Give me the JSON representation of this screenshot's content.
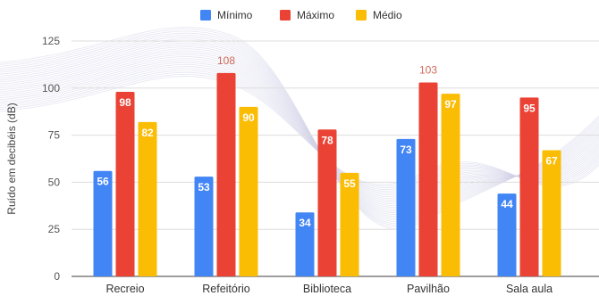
{
  "chart_data": {
    "type": "bar",
    "ylabel": "Ruído em decibéis (dB)",
    "ylim": [
      0,
      125
    ],
    "yticks": [
      0,
      25,
      50,
      75,
      100,
      125
    ],
    "categories": [
      "Recreio",
      "Refeitório",
      "Biblioteca",
      "Pavilhão",
      "Sala aula"
    ],
    "series": [
      {
        "name": "Mínimo",
        "color": "#4285f4",
        "values": [
          56,
          53,
          34,
          73,
          44
        ]
      },
      {
        "name": "Máximo",
        "color": "#ea4335",
        "values": [
          98,
          108,
          78,
          103,
          95
        ]
      },
      {
        "name": "Médio",
        "color": "#fbbc04",
        "values": [
          82,
          90,
          55,
          97,
          67
        ]
      }
    ],
    "legend_position": "top-center",
    "grid": true
  }
}
